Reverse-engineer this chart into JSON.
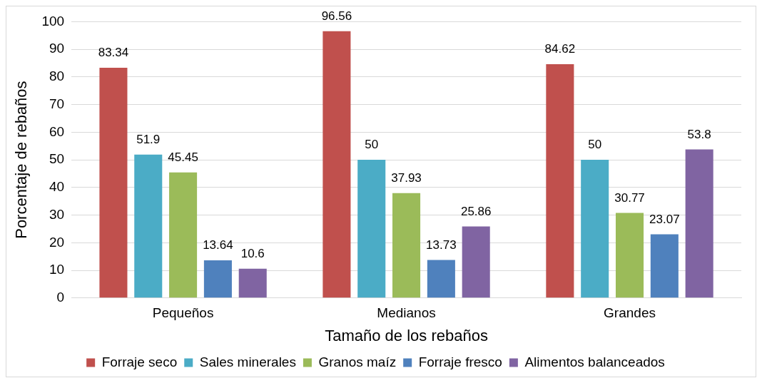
{
  "chart_data": {
    "type": "bar",
    "xlabel": "Tamaño de los rebaños",
    "ylabel": "Porcentaje de rebaños",
    "categories": [
      "Pequeños",
      "Medianos",
      "Grandes"
    ],
    "series": [
      {
        "name": "Forraje seco",
        "color": "#c0504d",
        "values": [
          83.34,
          96.56,
          84.62
        ]
      },
      {
        "name": "Sales minerales",
        "color": "#4bacc6",
        "values": [
          51.9,
          50,
          50
        ]
      },
      {
        "name": "Granos maíz",
        "color": "#9bbb59",
        "values": [
          45.45,
          37.93,
          30.77
        ]
      },
      {
        "name": "Forraje fresco",
        "color": "#4f81bd",
        "values": [
          13.64,
          13.73,
          23.07
        ]
      },
      {
        "name": "Alimentos balanceados",
        "color": "#8064a2",
        "values": [
          10.6,
          25.86,
          53.8
        ]
      }
    ],
    "ylim": [
      0,
      100
    ],
    "yticks": [
      0,
      10,
      20,
      30,
      40,
      50,
      60,
      70,
      80,
      90,
      100
    ],
    "grid": "y",
    "legend": "bottom",
    "data_labels": true
  }
}
